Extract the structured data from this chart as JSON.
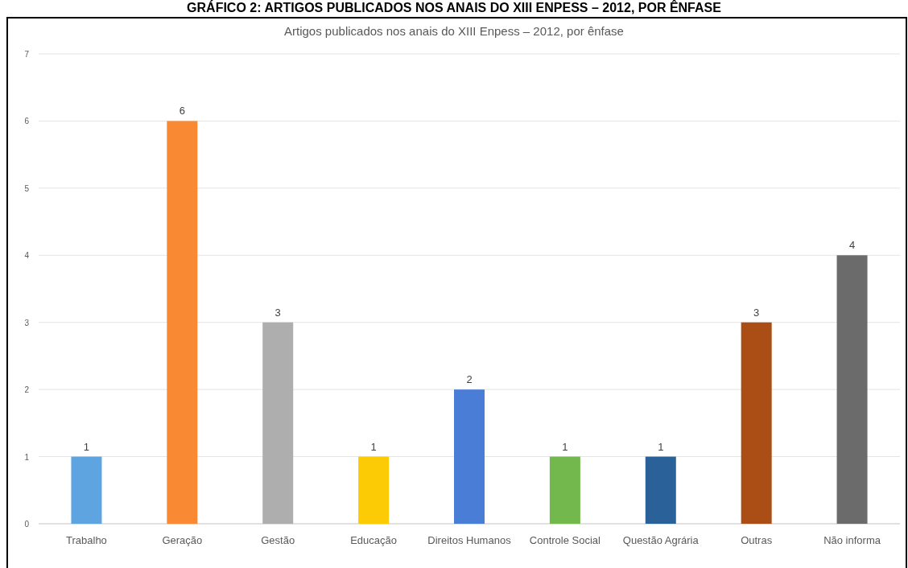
{
  "chart_data": {
    "type": "bar",
    "title": "GRÁFICO 2: ARTIGOS PUBLICADOS NOS ANAIS DO XIII ENPESS – 2012, POR ÊNFASE",
    "subtitle": "Artigos publicados nos anais do XIII Enpess – 2012, por ênfase",
    "categories": [
      "Trabalho",
      "Geração",
      "Gestão",
      "Educação",
      "Direitos Humanos",
      "Controle Social",
      "Questão Agrária",
      "Outras",
      "Não informa"
    ],
    "values": [
      1,
      6,
      3,
      1,
      2,
      1,
      1,
      3,
      4
    ],
    "colors": [
      "#5ea4e0",
      "#f98a33",
      "#aeaeae",
      "#fdcb05",
      "#4a7dd6",
      "#73b84c",
      "#2b6199",
      "#ab4e16",
      "#6b6b6b"
    ],
    "ylim": [
      0,
      7
    ],
    "yticks": [
      0,
      1,
      2,
      3,
      4,
      5,
      6,
      7
    ],
    "grid": "y",
    "data_labels": true
  }
}
